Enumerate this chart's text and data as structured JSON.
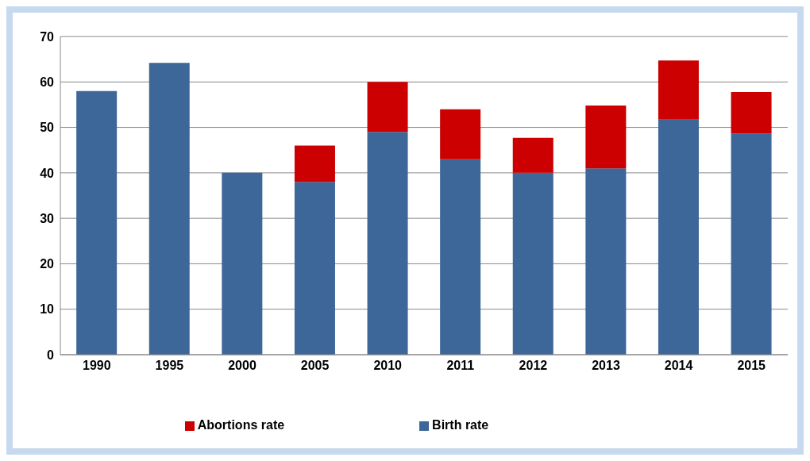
{
  "chart_data": {
    "type": "bar",
    "stacked": true,
    "categories": [
      "1990",
      "1995",
      "2000",
      "2005",
      "2010",
      "2011",
      "2012",
      "2013",
      "2014",
      "2015"
    ],
    "series": [
      {
        "name": "Birth rate",
        "color": "#3d6699",
        "values": [
          58,
          64.2,
          40,
          38,
          49,
          43,
          40,
          41,
          51.7,
          48.6
        ]
      },
      {
        "name": "Abortions rate",
        "color": "#cc0000",
        "values": [
          null,
          null,
          null,
          8,
          11,
          11,
          7.7,
          13.8,
          13,
          9.2
        ]
      }
    ],
    "ylim": [
      0,
      70
    ],
    "yticks": [
      0,
      10,
      20,
      30,
      40,
      50,
      60,
      70
    ],
    "grid": "y",
    "legend": "bottom"
  }
}
